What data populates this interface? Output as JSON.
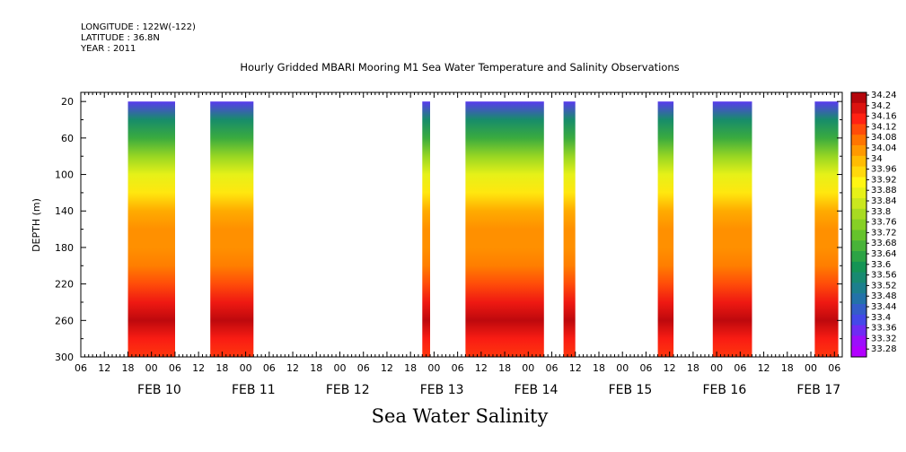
{
  "meta": {
    "longitude": "LONGITUDE : 122W(-122)",
    "latitude": "LATITUDE : 36.8N",
    "year": "YEAR : 2011"
  },
  "title": "Hourly Gridded MBARI Mooring M1 Sea Water Temperature and Salinity Observations",
  "caption": "Sea Water Salinity",
  "chart_data": {
    "type": "heatmap",
    "title": "Hourly Gridded MBARI Mooring M1 Sea Water Temperature and Salinity Observations",
    "xlabel": "",
    "ylabel": "DEPTH (m)",
    "ylim": [
      300,
      10
    ],
    "y_ticks": [
      "20",
      "60",
      "100",
      "140",
      "180",
      "220",
      "260",
      "300"
    ],
    "x_hour_ticks": [
      "06",
      "12",
      "18",
      "00",
      "06",
      "12",
      "18",
      "00",
      "06",
      "12",
      "18",
      "00",
      "06",
      "12",
      "18",
      "00",
      "06",
      "12",
      "18",
      "00",
      "06",
      "12",
      "18",
      "00",
      "06",
      "12",
      "18",
      "00",
      "06",
      "12",
      "18",
      "00",
      "06"
    ],
    "x_day_labels": [
      "FEB 10",
      "FEB 11",
      "FEB 12",
      "FEB 13",
      "FEB 14",
      "FEB 15",
      "FEB 16",
      "FEB 17"
    ],
    "colorbar_labels": [
      "34.24",
      "34.2",
      "34.16",
      "34.12",
      "34.08",
      "34.04",
      "34",
      "33.96",
      "33.92",
      "33.88",
      "33.84",
      "33.8",
      "33.76",
      "33.72",
      "33.68",
      "33.64",
      "33.6",
      "33.56",
      "33.52",
      "33.48",
      "33.44",
      "33.4",
      "33.36",
      "33.32",
      "33.28"
    ],
    "value_range": [
      33.28,
      34.24
    ],
    "data_blocks": [
      {
        "start": "FEB 09 18",
        "end": "FEB 10 06"
      },
      {
        "start": "FEB 10 15",
        "end": "FEB 11 02"
      },
      {
        "start": "FEB 12 21",
        "end": "FEB 12 23"
      },
      {
        "start": "FEB 13 08",
        "end": "FEB 14 04"
      },
      {
        "start": "FEB 14 09",
        "end": "FEB 14 12"
      },
      {
        "start": "FEB 15 09",
        "end": "FEB 15 13"
      },
      {
        "start": "FEB 15 23",
        "end": "FEB 16 09"
      },
      {
        "start": "FEB 17 01",
        "end": "FEB 17 07"
      }
    ],
    "depth_profile": [
      {
        "depth": 20,
        "value": 33.36
      },
      {
        "depth": 40,
        "value": 33.55
      },
      {
        "depth": 60,
        "value": 33.64
      },
      {
        "depth": 80,
        "value": 33.76
      },
      {
        "depth": 100,
        "value": 33.86
      },
      {
        "depth": 120,
        "value": 33.92
      },
      {
        "depth": 140,
        "value": 34.0
      },
      {
        "depth": 160,
        "value": 34.03
      },
      {
        "depth": 180,
        "value": 34.03
      },
      {
        "depth": 200,
        "value": 34.05
      },
      {
        "depth": 220,
        "value": 34.1
      },
      {
        "depth": 240,
        "value": 34.16
      },
      {
        "depth": 260,
        "value": 34.21
      },
      {
        "depth": 280,
        "value": 34.15
      },
      {
        "depth": 300,
        "value": 34.12
      }
    ]
  }
}
